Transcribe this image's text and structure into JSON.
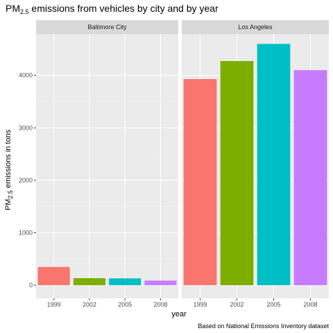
{
  "chart_data": {
    "type": "bar",
    "title_main": "PM",
    "title_sub": "2.5",
    "title_rest": " emissions from vehicles by city and by year",
    "xlabel": "year",
    "ylabel_main": "PM",
    "ylabel_sub": "2.5",
    "ylabel_rest": " emissions in tons",
    "caption": "Based on National Emissions Inventory dataset",
    "categories": [
      "1999",
      "2002",
      "2005",
      "2008"
    ],
    "colors": [
      "#F8766D",
      "#7CAE00",
      "#00BFC4",
      "#C77CFF"
    ],
    "ylim": [
      -250,
      4790
    ],
    "yticks": [
      0,
      1000,
      2000,
      3000,
      4000
    ],
    "grid": true,
    "legend": "none",
    "facets": [
      {
        "name": "Baltimore City",
        "values": [
          347,
          134,
          130,
          88
        ]
      },
      {
        "name": "Los Angeles",
        "values": [
          3931,
          4274,
          4601,
          4101
        ]
      }
    ]
  }
}
